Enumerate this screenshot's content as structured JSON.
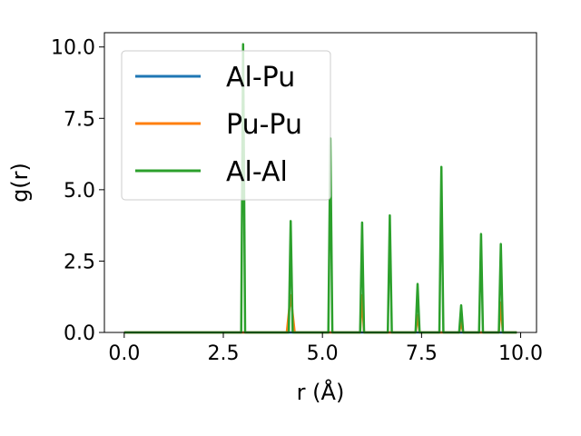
{
  "chart_data": {
    "type": "line",
    "xlabel": "r (Å)",
    "ylabel": "g(r)",
    "xlim": [
      -0.5,
      10.4
    ],
    "ylim": [
      0,
      10.5
    ],
    "xticks": [
      "0.0",
      "2.5",
      "5.0",
      "7.5",
      "10.0"
    ],
    "xtick_values": [
      0,
      2.5,
      5,
      7.5,
      10
    ],
    "yticks": [
      "0.0",
      "2.5",
      "5.0",
      "7.5",
      "10.0"
    ],
    "ytick_values": [
      0,
      2.5,
      5,
      7.5,
      10
    ],
    "grid": false,
    "legend_position": "upper-left",
    "series": [
      {
        "name": "Al-Pu",
        "color": "#1f77b4",
        "x": [
          0.0,
          9.9
        ],
        "y": [
          0.0,
          0.0
        ]
      },
      {
        "name": "Pu-Pu",
        "color": "#ff7f0e",
        "x": [
          0.0,
          4.1,
          4.2,
          4.3,
          5.95,
          6.0,
          6.05,
          7.35,
          7.4,
          7.45,
          8.45,
          8.5,
          8.55,
          9.45,
          9.5,
          9.55,
          9.9
        ],
        "y": [
          0.0,
          0.0,
          1.3,
          0.0,
          0.0,
          1.3,
          0.0,
          0.0,
          0.6,
          0.0,
          0.0,
          0.35,
          0.0,
          0.0,
          1.05,
          0.0,
          0.0
        ]
      },
      {
        "name": "Al-Al",
        "color": "#2ca02c",
        "x": [
          0.0,
          2.95,
          3.0,
          3.05,
          4.15,
          4.2,
          4.25,
          5.15,
          5.2,
          5.25,
          5.95,
          6.0,
          6.05,
          6.65,
          6.7,
          6.75,
          7.35,
          7.4,
          7.45,
          7.95,
          8.0,
          8.05,
          8.45,
          8.5,
          8.55,
          8.95,
          9.0,
          9.05,
          9.45,
          9.5,
          9.55,
          9.9
        ],
        "y": [
          0.0,
          0.0,
          10.1,
          0.0,
          0.0,
          3.9,
          0.0,
          0.0,
          6.8,
          0.0,
          0.0,
          3.85,
          0.0,
          0.0,
          4.1,
          0.0,
          0.0,
          1.7,
          0.0,
          0.0,
          5.8,
          0.0,
          0.0,
          0.95,
          0.0,
          0.0,
          3.45,
          0.0,
          0.0,
          3.1,
          0.0,
          0.0
        ]
      }
    ]
  }
}
